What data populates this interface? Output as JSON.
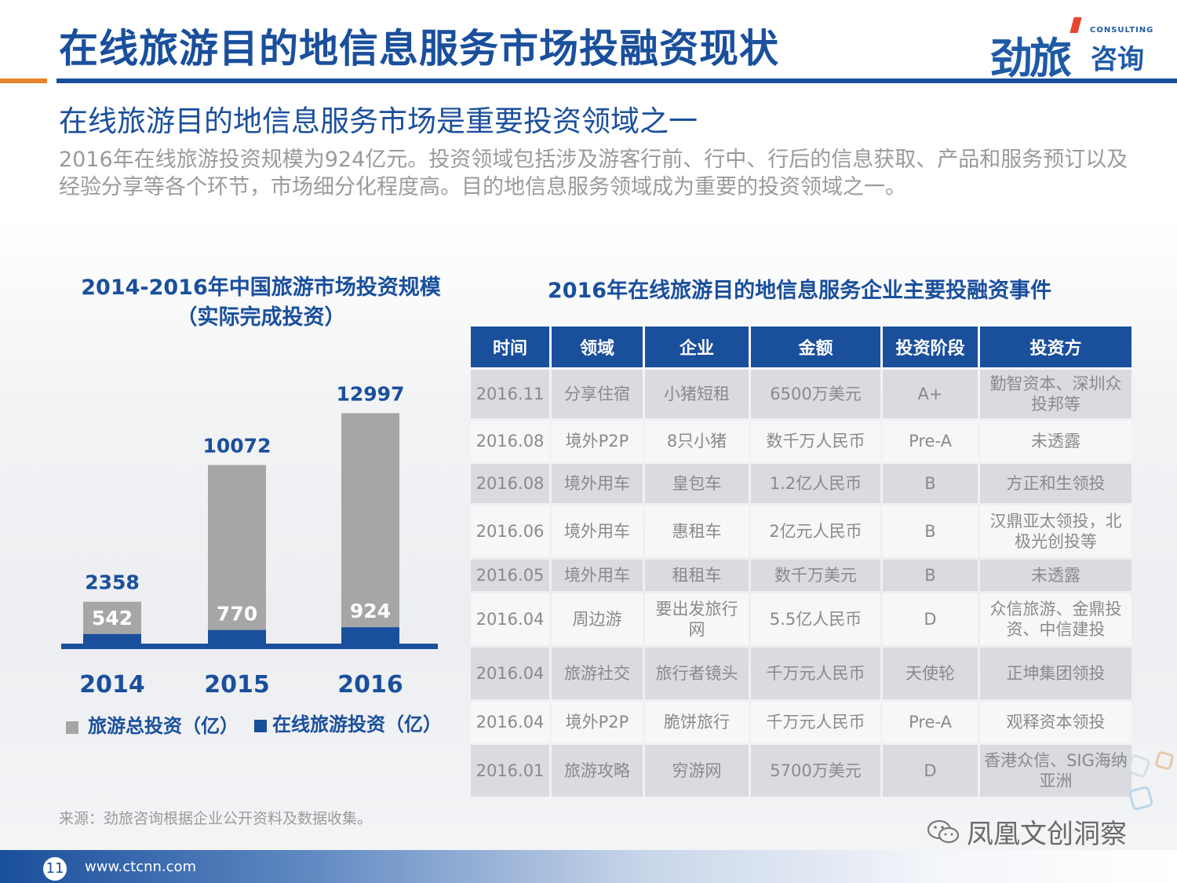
{
  "header": {
    "title": "在线旅游目的地信息服务市场投融资现状",
    "logo_text": "劲旅",
    "logo_sub": "咨询",
    "logo_en": "CONSULTING"
  },
  "subtitle": "在线旅游目的地信息服务市场是重要投资领域之一",
  "description": "2016年在线旅游投资规模为924亿元。投资领域包括涉及游客行前、行中、行后的信息获取、产品和服务预订以及经验分享等各个环节，市场细分化程度高。目的地信息服务领域成为重要的投资领域之一。",
  "chart_data": {
    "type": "bar",
    "title": "2014-2016年中国旅游市场投资规模（实际完成投资）",
    "categories": [
      "2014",
      "2015",
      "2016"
    ],
    "series": [
      {
        "name": "旅游总投资（亿）",
        "values": [
          2358,
          10072,
          12997
        ],
        "color": "#a6a6a6"
      },
      {
        "name": "在线旅游投资（亿）",
        "values": [
          542,
          770,
          924
        ],
        "color": "#1a4f9c"
      }
    ],
    "total_labels": [
      "2358",
      "10072",
      "12997"
    ],
    "online_labels": [
      "542",
      "770",
      "924"
    ],
    "ylim": [
      0,
      13500
    ],
    "grid": false,
    "legend_position": "bottom"
  },
  "chart_title_line1": "2014-2016年中国旅游市场投资规模",
  "chart_title_line2": "（实际完成投资）",
  "table": {
    "title": "2016年在线旅游目的地信息服务企业主要投融资事件",
    "headers": [
      "时间",
      "领域",
      "企业",
      "金额",
      "投资阶段",
      "投资方"
    ],
    "rows": [
      [
        "2016.11",
        "分享住宿",
        "小猪短租",
        "6500万美元",
        "A+",
        "勤智资本、深圳众投邦等"
      ],
      [
        "2016.08",
        "境外P2P",
        "8只小猪",
        "数千万人民币",
        "Pre-A",
        "未透露"
      ],
      [
        "2016.08",
        "境外用车",
        "皇包车",
        "1.2亿人民币",
        "B",
        "方正和生领投"
      ],
      [
        "2016.06",
        "境外用车",
        "惠租车",
        "2亿元人民币",
        "B",
        "汉鼎亚太领投，北极光创投等"
      ],
      [
        "2016.05",
        "境外用车",
        "租租车",
        "数千万美元",
        "B",
        "未透露"
      ],
      [
        "2016.04",
        "周边游",
        "要出发旅行网",
        "5.5亿人民币",
        "D",
        "众信旅游、金鼎投资、中信建投"
      ],
      [
        "2016.04",
        "旅游社交",
        "旅行者镜头",
        "千万元人民币",
        "天使轮",
        "正坤集团领投"
      ],
      [
        "2016.04",
        "境外P2P",
        "脆饼旅行",
        "千万元人民币",
        "Pre-A",
        "观释资本领投"
      ],
      [
        "2016.01",
        "旅游攻略",
        "穷游网",
        "5700万美元",
        "D",
        "香港众信、SIG海纳亚洲"
      ]
    ]
  },
  "source": "来源：劲旅咨询根据企业公开资料及数据收集。",
  "watermark": "凤凰文创洞察",
  "footer": {
    "page_number": "11",
    "website": "www.ctcnn.com"
  }
}
